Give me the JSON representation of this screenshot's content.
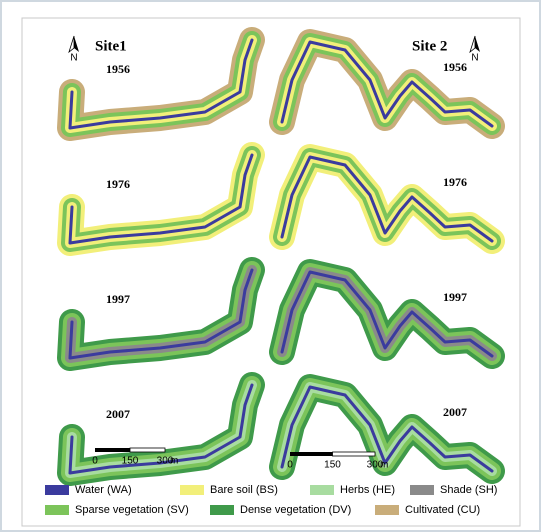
{
  "sites": [
    {
      "name": "Site1",
      "north": "N",
      "years": [
        "1956",
        "1976",
        "1997",
        "2007"
      ],
      "scale": {
        "ticks": [
          0,
          150,
          300
        ],
        "unit": "m"
      }
    },
    {
      "name": "Site 2",
      "north": "N",
      "years": [
        "1956",
        "1976",
        "1997",
        "2007"
      ],
      "scale": {
        "ticks": [
          0,
          150,
          300
        ],
        "unit": "m"
      }
    }
  ],
  "legend": [
    {
      "label": "Water (WA)",
      "color": "#3b3b9e"
    },
    {
      "label": "Bare soil (BS)",
      "color": "#f2ef7a"
    },
    {
      "label": "Herbs (HE)",
      "color": "#a8dca0"
    },
    {
      "label": "Shade (SH)",
      "color": "#8a8a8a"
    },
    {
      "label": "Sparse vegetation (SV)",
      "color": "#7cc45a"
    },
    {
      "label": "Dense vegetation (DV)",
      "color": "#3f9a4a"
    },
    {
      "label": "Cultivated (CU)",
      "color": "#c9ad7a"
    }
  ]
}
